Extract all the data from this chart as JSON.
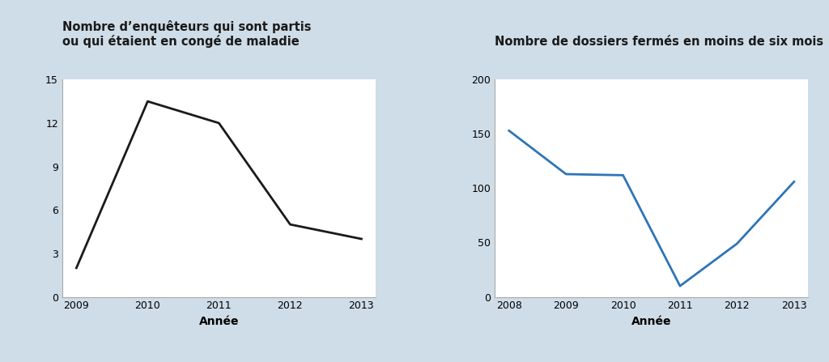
{
  "chart1": {
    "title_line1": "Nombre d’enquêteurs qui sont partis",
    "title_line2": "ou qui étaient en congé de maladie",
    "xlabel": "Année",
    "x": [
      2009,
      2010,
      2011,
      2012,
      2013
    ],
    "y": [
      2.0,
      13.5,
      12.0,
      5.0,
      4.0
    ],
    "line_color": "#1a1a1a",
    "ylim": [
      0,
      15
    ],
    "yticks": [
      0,
      3,
      6,
      9,
      12,
      15
    ],
    "xticks": [
      2009,
      2010,
      2011,
      2012,
      2013
    ]
  },
  "chart2": {
    "title": "Nombre de dossiers fermés en moins de six mois",
    "xlabel": "Année",
    "x": [
      2008,
      2009,
      2010,
      2011,
      2012,
      2013
    ],
    "y": [
      153,
      113,
      112,
      10,
      49,
      106
    ],
    "line_color": "#2e75b6",
    "ylim": [
      0,
      200
    ],
    "yticks": [
      0,
      50,
      100,
      150,
      200
    ],
    "xticks": [
      2008,
      2009,
      2010,
      2011,
      2012,
      2013
    ]
  },
  "background_color": "#cfdde8",
  "plot_bg_color": "#ffffff",
  "title_fontsize": 10.5,
  "label_fontsize": 10,
  "tick_fontsize": 9,
  "line_width": 2.0
}
